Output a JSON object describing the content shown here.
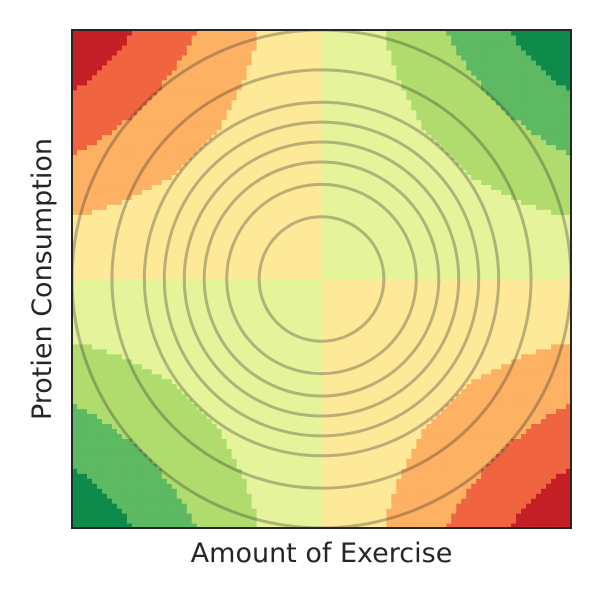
{
  "chart_data": {
    "type": "heatmap",
    "title": "",
    "xlabel": "Amount of Exercise",
    "ylabel": "Protien Consumption",
    "xlim": [
      -1,
      1
    ],
    "ylim": [
      -1,
      1
    ],
    "x_ticks": [],
    "y_ticks": [],
    "grid": false,
    "legend": "none",
    "colormap": "RdYlGn",
    "filled_contour": {
      "function": "x * y",
      "levels": [
        -1.0,
        -0.75,
        -0.5,
        -0.25,
        0.0,
        0.25,
        0.5,
        0.75,
        1.0
      ],
      "colors": [
        "#c41e27",
        "#f06440",
        "#fdb163",
        "#fee999",
        "#e5f49b",
        "#b0dc6e",
        "#5db962",
        "#0e8a4a"
      ]
    },
    "contour_lines": {
      "function": "x^2 + y^2",
      "radii": [
        0.25,
        0.38,
        0.47,
        0.55,
        0.63,
        0.71,
        0.84,
        1.0
      ],
      "color": "#262626",
      "opacity": 0.3
    }
  }
}
